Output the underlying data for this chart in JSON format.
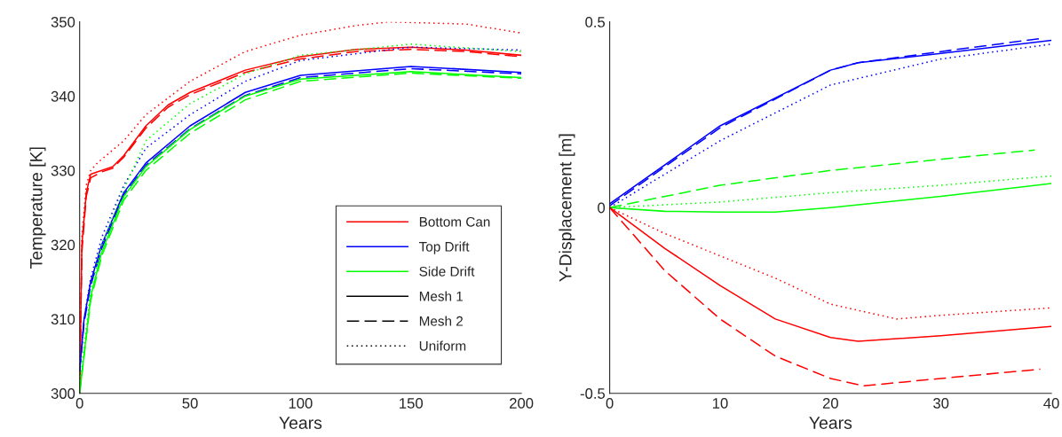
{
  "chart_data": [
    {
      "type": "line",
      "xlabel": "Years",
      "ylabel": "Temperature [K]",
      "xlim": [
        0,
        200
      ],
      "xticks": [
        0,
        50,
        100,
        150,
        200
      ],
      "ylim": [
        300,
        350
      ],
      "yticks": [
        300,
        310,
        320,
        330,
        340,
        350
      ],
      "grid": false,
      "legend": "bottom right",
      "series": [
        {
          "name": "Bottom Can",
          "color": "#ff0000",
          "line_style": "solid",
          "x": [
            0,
            1,
            3,
            5,
            10,
            15,
            20,
            30,
            40,
            50,
            75,
            100,
            125,
            150,
            175,
            200
          ],
          "values": [
            300,
            320,
            327,
            329.5,
            330,
            330.5,
            332,
            336,
            338.8,
            340.5,
            343.5,
            345.3,
            346.3,
            346.6,
            346.2,
            345.5
          ]
        },
        {
          "color": "#ff0000",
          "line_style": "dashed",
          "x": [
            0,
            1,
            3,
            5,
            10,
            15,
            20,
            30,
            40,
            50,
            75,
            100,
            125,
            150,
            175,
            200
          ],
          "values": [
            300,
            319,
            326.5,
            329,
            329.8,
            330.3,
            331.8,
            335.7,
            338.5,
            340.2,
            343.2,
            345,
            346,
            346.3,
            346,
            345.3
          ]
        },
        {
          "color": "#ff0000",
          "line_style": "dotted",
          "x": [
            0,
            1,
            3,
            5,
            8,
            20,
            30,
            50,
            75,
            100,
            125,
            140,
            175,
            200
          ],
          "values": [
            300,
            321,
            328,
            330,
            331,
            334,
            337.5,
            342,
            346,
            348.2,
            349.5,
            350,
            349.7,
            348.5
          ]
        },
        {
          "name": "Top Drift",
          "color": "#0000ff",
          "line_style": "solid",
          "x": [
            0,
            2,
            5,
            10,
            20,
            30,
            50,
            75,
            100,
            150,
            200
          ],
          "values": [
            303,
            310,
            315,
            320,
            327,
            331,
            336,
            340.5,
            342.8,
            344,
            343.2
          ]
        },
        {
          "color": "#0000ff",
          "line_style": "dashed",
          "x": [
            0,
            2,
            5,
            10,
            20,
            30,
            50,
            75,
            100,
            150,
            200
          ],
          "values": [
            303,
            309.5,
            314.5,
            319.5,
            326.7,
            330.7,
            335.6,
            340.1,
            342.5,
            343.7,
            343
          ]
        },
        {
          "color": "#0000ff",
          "line_style": "dotted",
          "x": [
            0,
            2,
            5,
            10,
            20,
            30,
            50,
            75,
            100,
            150,
            200
          ],
          "values": [
            303,
            310,
            315.5,
            321,
            328,
            333,
            337.5,
            342,
            344.8,
            346.6,
            346.2
          ]
        },
        {
          "name": "Side Drift",
          "color": "#00ff00",
          "line_style": "solid",
          "x": [
            0,
            5,
            10,
            20,
            30,
            50,
            75,
            100,
            150,
            200
          ],
          "values": [
            300,
            313,
            319,
            326.5,
            330.5,
            335.5,
            340,
            342.3,
            343.3,
            342.5
          ]
        },
        {
          "color": "#00ff00",
          "line_style": "dashed",
          "x": [
            0,
            5,
            10,
            20,
            30,
            50,
            75,
            100,
            150,
            200
          ],
          "values": [
            300,
            312.5,
            318.5,
            326,
            330,
            335,
            339.5,
            342,
            343.1,
            342.4
          ]
        },
        {
          "color": "#00ff00",
          "line_style": "dotted",
          "x": [
            0,
            5,
            10,
            20,
            30,
            50,
            75,
            100,
            150,
            200
          ],
          "values": [
            301,
            314,
            320,
            327.5,
            334,
            339,
            343,
            345.5,
            347,
            346
          ]
        },
        {
          "name": "Mesh 1",
          "color": "#000000",
          "line_style": "solid"
        },
        {
          "name": "Mesh 2",
          "color": "#000000",
          "line_style": "dashed"
        },
        {
          "name": "Uniform",
          "color": "#000000",
          "line_style": "dotted"
        }
      ]
    },
    {
      "type": "line",
      "xlabel": "Years",
      "ylabel": "Y-Displacement [m]",
      "xlim": [
        0,
        40
      ],
      "xticks": [
        0,
        10,
        20,
        30,
        40
      ],
      "ylim": [
        -0.5,
        0.5
      ],
      "yticks": [
        {
          "value": -0.5,
          "label": "-0.5"
        },
        0,
        0.5
      ],
      "grid": false,
      "series": [
        {
          "color": "#0000ff",
          "line_style": "solid",
          "x": [
            0,
            10,
            20,
            22.5,
            30,
            40
          ],
          "values": [
            0.01,
            0.22,
            0.37,
            0.39,
            0.415,
            0.45
          ]
        },
        {
          "color": "#0000ff",
          "line_style": "dashed",
          "x": [
            0,
            10,
            20,
            22.5,
            30,
            39
          ],
          "values": [
            0.005,
            0.215,
            0.37,
            0.39,
            0.42,
            0.455
          ]
        },
        {
          "color": "#0000ff",
          "line_style": "dotted",
          "x": [
            0,
            10,
            20,
            30,
            40
          ],
          "values": [
            0,
            0.18,
            0.33,
            0.4,
            0.44
          ]
        },
        {
          "color": "#00ff00",
          "line_style": "solid",
          "x": [
            0,
            5,
            10,
            15,
            20,
            30,
            40
          ],
          "values": [
            0,
            -0.01,
            -0.012,
            -0.012,
            0,
            0.03,
            0.065
          ]
        },
        {
          "color": "#00ff00",
          "line_style": "dashed",
          "x": [
            0,
            10,
            20,
            30,
            38.5
          ],
          "values": [
            0,
            0.06,
            0.1,
            0.13,
            0.155
          ]
        },
        {
          "color": "#00ff00",
          "line_style": "dotted",
          "x": [
            0,
            10,
            20,
            30,
            40
          ],
          "values": [
            0,
            0.015,
            0.04,
            0.06,
            0.085
          ]
        },
        {
          "color": "#ff0000",
          "line_style": "solid",
          "x": [
            0,
            5,
            10,
            15,
            20,
            22.5,
            30,
            40
          ],
          "values": [
            0,
            -0.11,
            -0.21,
            -0.3,
            -0.35,
            -0.36,
            -0.345,
            -0.32
          ]
        },
        {
          "color": "#ff0000",
          "line_style": "dashed",
          "x": [
            0,
            5,
            10,
            15,
            20,
            23,
            30,
            39
          ],
          "values": [
            0,
            -0.17,
            -0.3,
            -0.4,
            -0.46,
            -0.48,
            -0.46,
            -0.435
          ]
        },
        {
          "color": "#ff0000",
          "line_style": "dotted",
          "x": [
            0,
            5,
            10,
            15,
            20,
            26,
            30,
            40
          ],
          "values": [
            0,
            -0.07,
            -0.13,
            -0.19,
            -0.26,
            -0.3,
            -0.29,
            -0.27
          ]
        }
      ]
    }
  ]
}
